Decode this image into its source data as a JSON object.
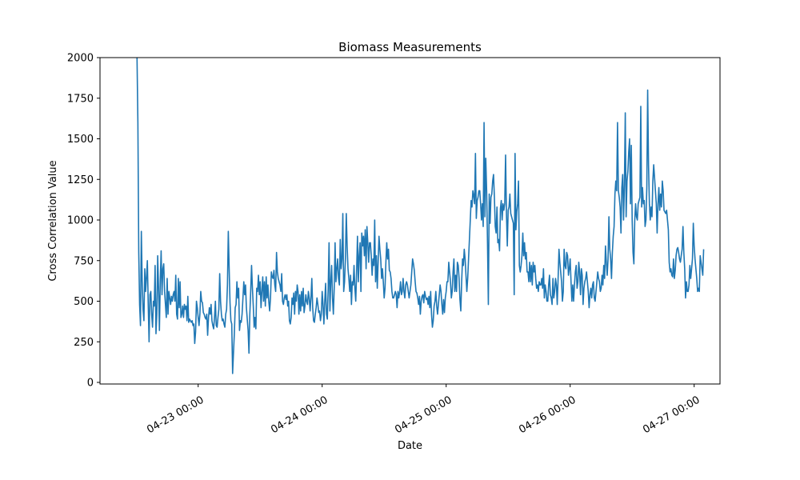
{
  "chart_data": {
    "type": "line",
    "title": "Biomass Measurements",
    "xlabel": "Date",
    "ylabel": "Cross Correlation Value",
    "x_range": [
      "2026-04-22T05:00",
      "2026-04-27T05:00"
    ],
    "ylim": [
      0,
      2000
    ],
    "y_ticks": [
      0,
      250,
      500,
      750,
      1000,
      1250,
      1500,
      1750,
      2000
    ],
    "x_ticks": [
      {
        "value": "2026-04-23T00:00",
        "label": "04-23 00:00"
      },
      {
        "value": "2026-04-24T00:00",
        "label": "04-24 00:00"
      },
      {
        "value": "2026-04-25T00:00",
        "label": "04-25 00:00"
      },
      {
        "value": "2026-04-26T00:00",
        "label": "04-26 00:00"
      },
      {
        "value": "2026-04-27T00:00",
        "label": "04-27 00:00"
      }
    ],
    "grid": false,
    "line_color": "#1f77b4",
    "series": [
      {
        "start": "2026-04-22T12:10",
        "interval_minutes": 10,
        "values": [
          2000,
          1600,
          800,
          480,
          350,
          930,
          620,
          450,
          380,
          700,
          560,
          650,
          750,
          480,
          250,
          540,
          560,
          420,
          340,
          500,
          470,
          720,
          300,
          420,
          780,
          580,
          320,
          630,
          810,
          540,
          700,
          730,
          560,
          480,
          400,
          640,
          420,
          560,
          520,
          480,
          530,
          500,
          540,
          560,
          500,
          660,
          420,
          390,
          640,
          460,
          620,
          400,
          420,
          470,
          400,
          480,
          450,
          470,
          380,
          530,
          370,
          390,
          380,
          370,
          380,
          350,
          360,
          240,
          310,
          500,
          460,
          400,
          350,
          420,
          560,
          500,
          490,
          430,
          420,
          400,
          390,
          420,
          290,
          400,
          460,
          420,
          480,
          380,
          350,
          330,
          400,
          500,
          350,
          340,
          400,
          450,
          670,
          500,
          420,
          380,
          390,
          360,
          340,
          420,
          450,
          600,
          930,
          700,
          490,
          380,
          360,
          55,
          180,
          300,
          460,
          480,
          620,
          520,
          580,
          320,
          380,
          370,
          420,
          520,
          620,
          540,
          600,
          460,
          390,
          320,
          180,
          420,
          560,
          720,
          580,
          470,
          340,
          400,
          330,
          580,
          560,
          660,
          540,
          620,
          460,
          560,
          650,
          500,
          620,
          470,
          650,
          520,
          600,
          500,
          440,
          520,
          680,
          650,
          640,
          690,
          600,
          560,
          800,
          680,
          640,
          620,
          600,
          560,
          670,
          500,
          480,
          520,
          540,
          510,
          540,
          470,
          500,
          380,
          360,
          400,
          520,
          480,
          550,
          420,
          560,
          500,
          600,
          560,
          420,
          540,
          440,
          560,
          470,
          580,
          430,
          470,
          540,
          500,
          480,
          560,
          520,
          440,
          520,
          640,
          460,
          380,
          370,
          420,
          460,
          520,
          480,
          430,
          440,
          380,
          420,
          560,
          480,
          360,
          500,
          610,
          420,
          390,
          580,
          860,
          440,
          620,
          720,
          520,
          420,
          580,
          860,
          620,
          700,
          760,
          640,
          600,
          880,
          700,
          760,
          1040,
          560,
          620,
          760,
          1040,
          840,
          700,
          640,
          560,
          660,
          480,
          620,
          600,
          720,
          580,
          500,
          680,
          900,
          620,
          780,
          860,
          560,
          920,
          840,
          900,
          780,
          940,
          700,
          960,
          860,
          740,
          860,
          860,
          780,
          660,
          760,
          720,
          1000,
          620,
          780,
          580,
          740,
          900,
          820,
          760,
          640,
          700,
          620,
          520,
          580,
          740,
          860,
          760,
          820,
          690,
          680,
          640,
          560,
          520,
          520,
          540,
          560,
          540,
          460,
          560,
          520,
          560,
          620,
          540,
          560,
          640,
          560,
          520,
          600,
          620,
          600,
          560,
          520,
          560,
          600,
          680,
          760,
          730,
          690,
          620,
          560,
          550,
          520,
          480,
          530,
          420,
          500,
          530,
          540,
          490,
          560,
          530,
          510,
          520,
          480,
          530,
          460,
          560,
          420,
          340,
          380,
          470,
          500,
          560,
          470,
          420,
          480,
          540,
          600,
          560,
          480,
          420,
          510,
          430,
          520,
          560,
          620,
          620,
          740,
          680,
          620,
          520,
          560,
          680,
          760,
          560,
          660,
          560,
          740,
          720,
          640,
          510,
          440,
          620,
          760,
          720,
          820,
          760,
          660,
          560,
          640,
          760,
          880,
          1000,
          1120,
          1080,
          1180,
          1150,
          1100,
          1410,
          1010,
          1120,
          1140,
          1180,
          1180,
          1100,
          1000,
          1100,
          960,
          1600,
          1020,
          1380,
          1180,
          860,
          480,
          1160,
          980,
          1140,
          1160,
          1240,
          1280,
          1140,
          960,
          920,
          1080,
          860,
          880,
          810,
          1070,
          1120,
          1000,
          1100,
          1060,
          1100,
          1400,
          1040,
          840,
          1060,
          1080,
          1160,
          1040,
          1020,
          1000,
          980,
          540,
          1410,
          940,
          1050,
          1100,
          1240,
          720,
          680,
          720,
          780,
          920,
          780,
          860,
          760,
          800,
          680,
          680,
          620,
          740,
          620,
          720,
          600,
          740,
          680,
          720,
          640,
          580,
          600,
          560,
          620,
          600,
          600,
          640,
          580,
          700,
          520,
          600,
          560,
          500,
          500,
          600,
          660,
          540,
          520,
          480,
          640,
          520,
          560,
          640,
          600,
          480,
          640,
          820,
          740,
          680,
          620,
          500,
          560,
          820,
          720,
          700,
          800,
          780,
          660,
          700,
          760,
          620,
          500,
          600,
          500,
          600,
          680,
          720,
          580,
          620,
          740,
          680,
          540,
          700,
          660,
          480,
          580,
          620,
          640,
          680,
          620,
          560,
          460,
          540,
          580,
          520,
          600,
          620,
          520,
          500,
          560,
          620,
          680,
          640,
          620,
          560,
          580,
          660,
          600,
          720,
          640,
          840,
          740,
          660,
          760,
          1020,
          820,
          760,
          640,
          800,
          900,
          960,
          1160,
          1240,
          1180,
          1600,
          1180,
          1140,
          1080,
          920,
          1200,
          1280,
          1000,
          1220,
          1660,
          1020,
          1240,
          1300,
          1420,
          1500,
          1100,
          1460,
          1000,
          800,
          730,
          1000,
          1100,
          1020,
          1000,
          1100,
          1120,
          1140,
          1700,
          1080,
          1200,
          1100,
          1120,
          960,
          1000,
          1200,
          1800,
          1340,
          1100,
          1000,
          1080,
          1020,
          1240,
          1340,
          1260,
          1180,
          1100,
          920,
          1100,
          1200,
          1060,
          1160,
          1080,
          1240,
          1180,
          1060,
          1050,
          1040,
          1060,
          1000,
          940,
          740,
          680,
          700,
          660,
          650,
          760,
          640,
          690,
          780,
          820,
          830,
          800,
          760,
          740,
          780,
          820,
          960,
          800,
          700,
          520,
          620,
          560,
          560,
          600,
          720,
          640,
          700,
          760,
          980,
          840,
          760,
          700,
          640,
          560,
          580,
          560,
          780,
          740,
          700,
          660,
          820
        ]
      }
    ]
  }
}
